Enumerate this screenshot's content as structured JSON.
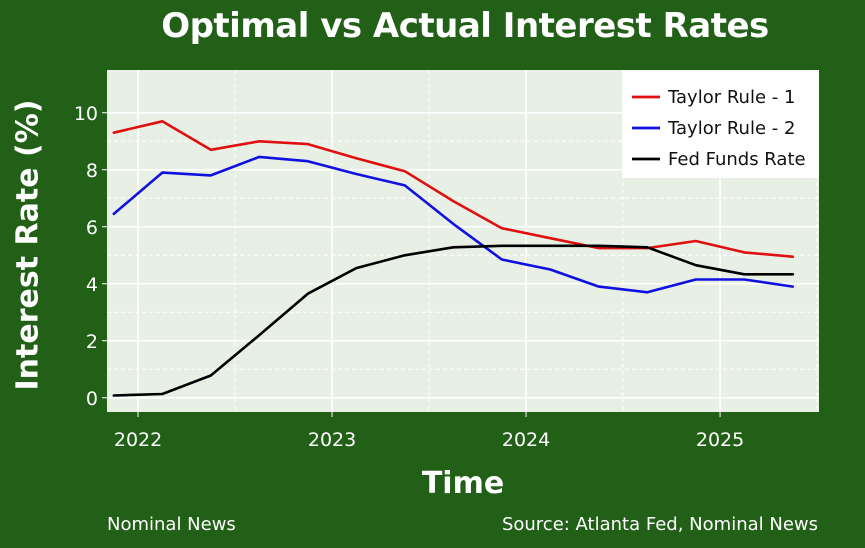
{
  "title": "Optimal vs Actual Interest Rates",
  "footer": {
    "left": "Nominal News",
    "right": "Source: Atlanta Fed, Nominal News"
  },
  "colors": {
    "background": "#216016",
    "panel": "#e8f0e6",
    "taylor1": "#e01010",
    "taylor2": "#1010e0",
    "fed": "#000000"
  },
  "chart_data": {
    "type": "line",
    "title": "Optimal vs Actual Interest Rates",
    "xlabel": "Time",
    "ylabel": "Interest Rate (%)",
    "xlim": [
      2021.84,
      2025.51
    ],
    "ylim": [
      -0.5,
      11.5
    ],
    "x_ticks": [
      2022,
      2023,
      2024,
      2025
    ],
    "y_ticks": [
      0,
      2,
      4,
      6,
      8,
      10
    ],
    "grid": true,
    "legend_position": "top-right",
    "series": [
      {
        "name": "Taylor Rule - 1",
        "color": "#e01010",
        "x": [
          2021.875,
          2022.125,
          2022.375,
          2022.625,
          2022.875,
          2023.125,
          2023.375,
          2023.625,
          2023.875,
          2024.125,
          2024.375,
          2024.625,
          2024.875,
          2025.125,
          2025.375
        ],
        "y": [
          9.3,
          9.7,
          8.7,
          9.0,
          8.9,
          8.4,
          7.95,
          6.9,
          5.95,
          5.6,
          5.25,
          5.25,
          5.5,
          5.1,
          4.95
        ]
      },
      {
        "name": "Taylor Rule - 2",
        "color": "#1010e0",
        "x": [
          2021.875,
          2022.125,
          2022.375,
          2022.625,
          2022.875,
          2023.125,
          2023.375,
          2023.625,
          2023.875,
          2024.125,
          2024.375,
          2024.625,
          2024.875,
          2025.125,
          2025.375
        ],
        "y": [
          6.45,
          7.9,
          7.8,
          8.45,
          8.3,
          7.85,
          7.45,
          6.1,
          4.85,
          4.5,
          3.9,
          3.7,
          4.15,
          4.15,
          3.9
        ]
      },
      {
        "name": "Fed Funds Rate",
        "color": "#000000",
        "x": [
          2021.875,
          2022.125,
          2022.375,
          2022.625,
          2022.875,
          2023.125,
          2023.375,
          2023.625,
          2023.875,
          2024.125,
          2024.375,
          2024.625,
          2024.875,
          2025.125,
          2025.375
        ],
        "y": [
          0.08,
          0.13,
          0.78,
          2.2,
          3.65,
          4.55,
          5.0,
          5.28,
          5.33,
          5.33,
          5.33,
          5.28,
          4.65,
          4.33,
          4.33
        ]
      }
    ]
  }
}
